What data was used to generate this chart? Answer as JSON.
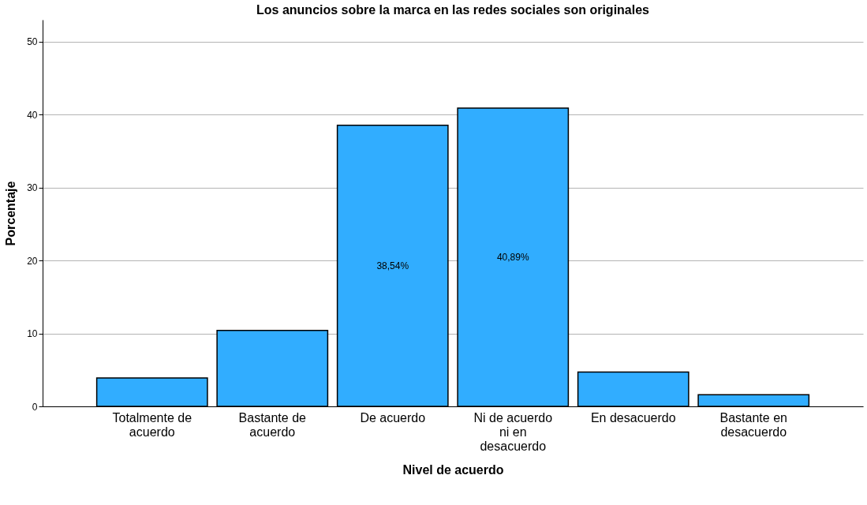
{
  "chart_data": {
    "type": "bar",
    "title": "Los anuncios sobre la marca en las redes sociales son originales",
    "xlabel": "Nivel de acuerdo",
    "ylabel": "Porcentaje",
    "categories": [
      "Totalmente de acuerdo",
      "Bastante de acuerdo",
      "De acuerdo",
      "Ni de acuerdo ni en desacuerdo",
      "En desacuerdo",
      "Bastante en desacuerdo"
    ],
    "values": [
      3.9,
      10.4,
      38.54,
      40.89,
      4.7,
      1.6
    ],
    "value_labels": [
      null,
      null,
      "38,54%",
      "40,89%",
      null,
      null
    ],
    "color": "#31adff",
    "ylim": [
      0,
      53
    ],
    "yticks": [
      0,
      10,
      20,
      30,
      40,
      50
    ],
    "grid": "y"
  }
}
